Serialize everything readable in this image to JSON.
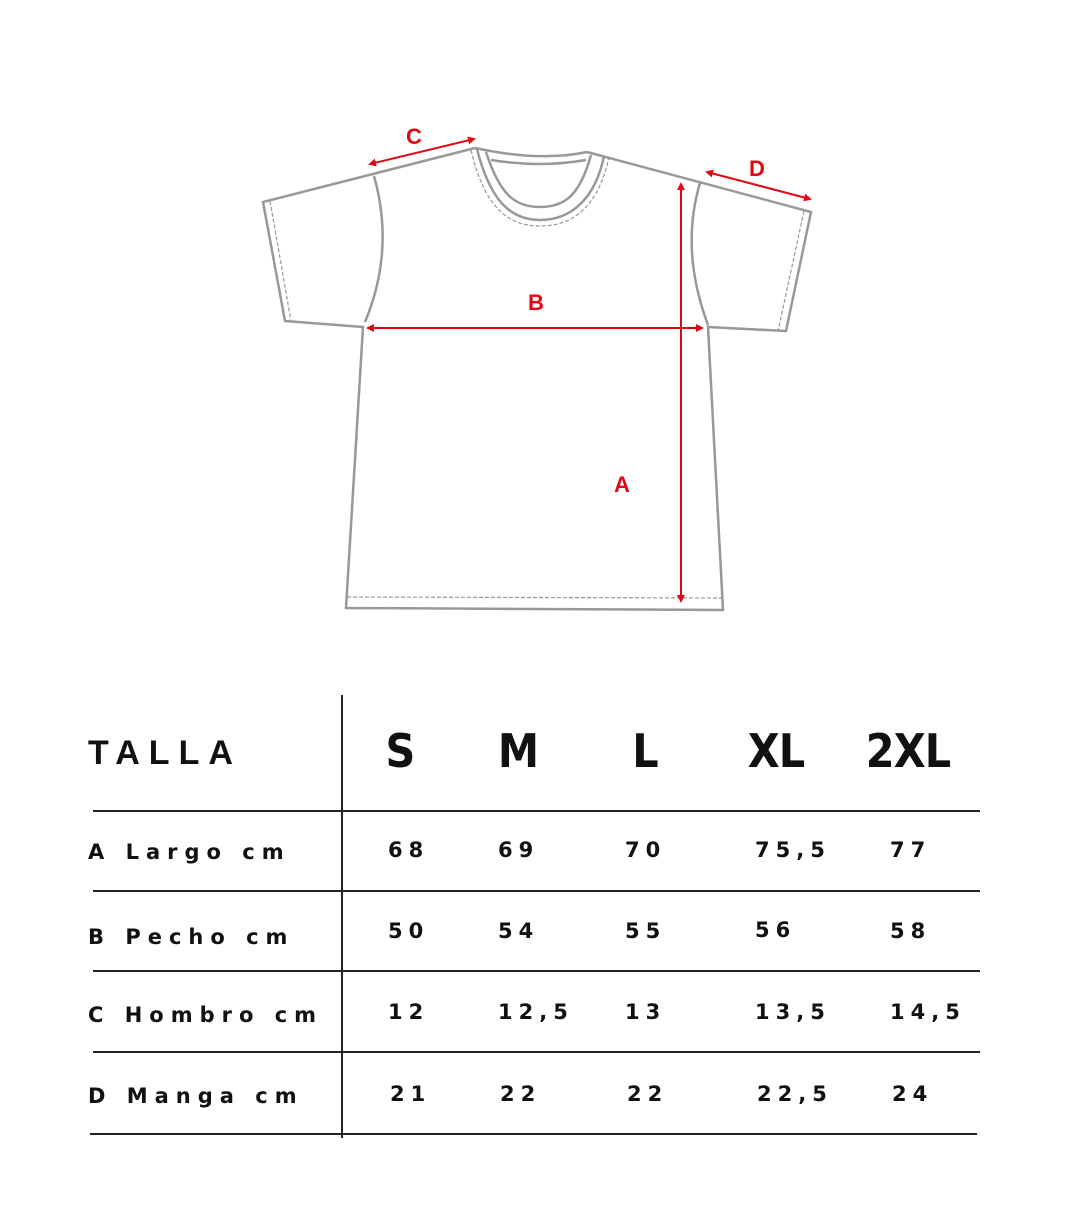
{
  "diagram": {
    "labels": {
      "a": "A",
      "b": "B",
      "c": "C",
      "d": "D"
    },
    "outline_color": "#9a9893",
    "arrow_color": "#e30613"
  },
  "table": {
    "header": "TALLA",
    "sizes": [
      "S",
      "M",
      "L",
      "XL",
      "2XL"
    ],
    "rows": [
      {
        "label": "A Largo cm",
        "values": [
          "68",
          "69",
          "70",
          "75,5",
          "77"
        ]
      },
      {
        "label": "B Pecho cm",
        "values": [
          "50",
          "54",
          "55",
          "56",
          "58"
        ]
      },
      {
        "label": "C Hombro cm",
        "values": [
          "12",
          "12,5",
          "13",
          "13,5",
          "14,5"
        ]
      },
      {
        "label": "D Manga cm",
        "values": [
          "21",
          "22",
          "22",
          "22,5",
          "24"
        ]
      }
    ]
  }
}
